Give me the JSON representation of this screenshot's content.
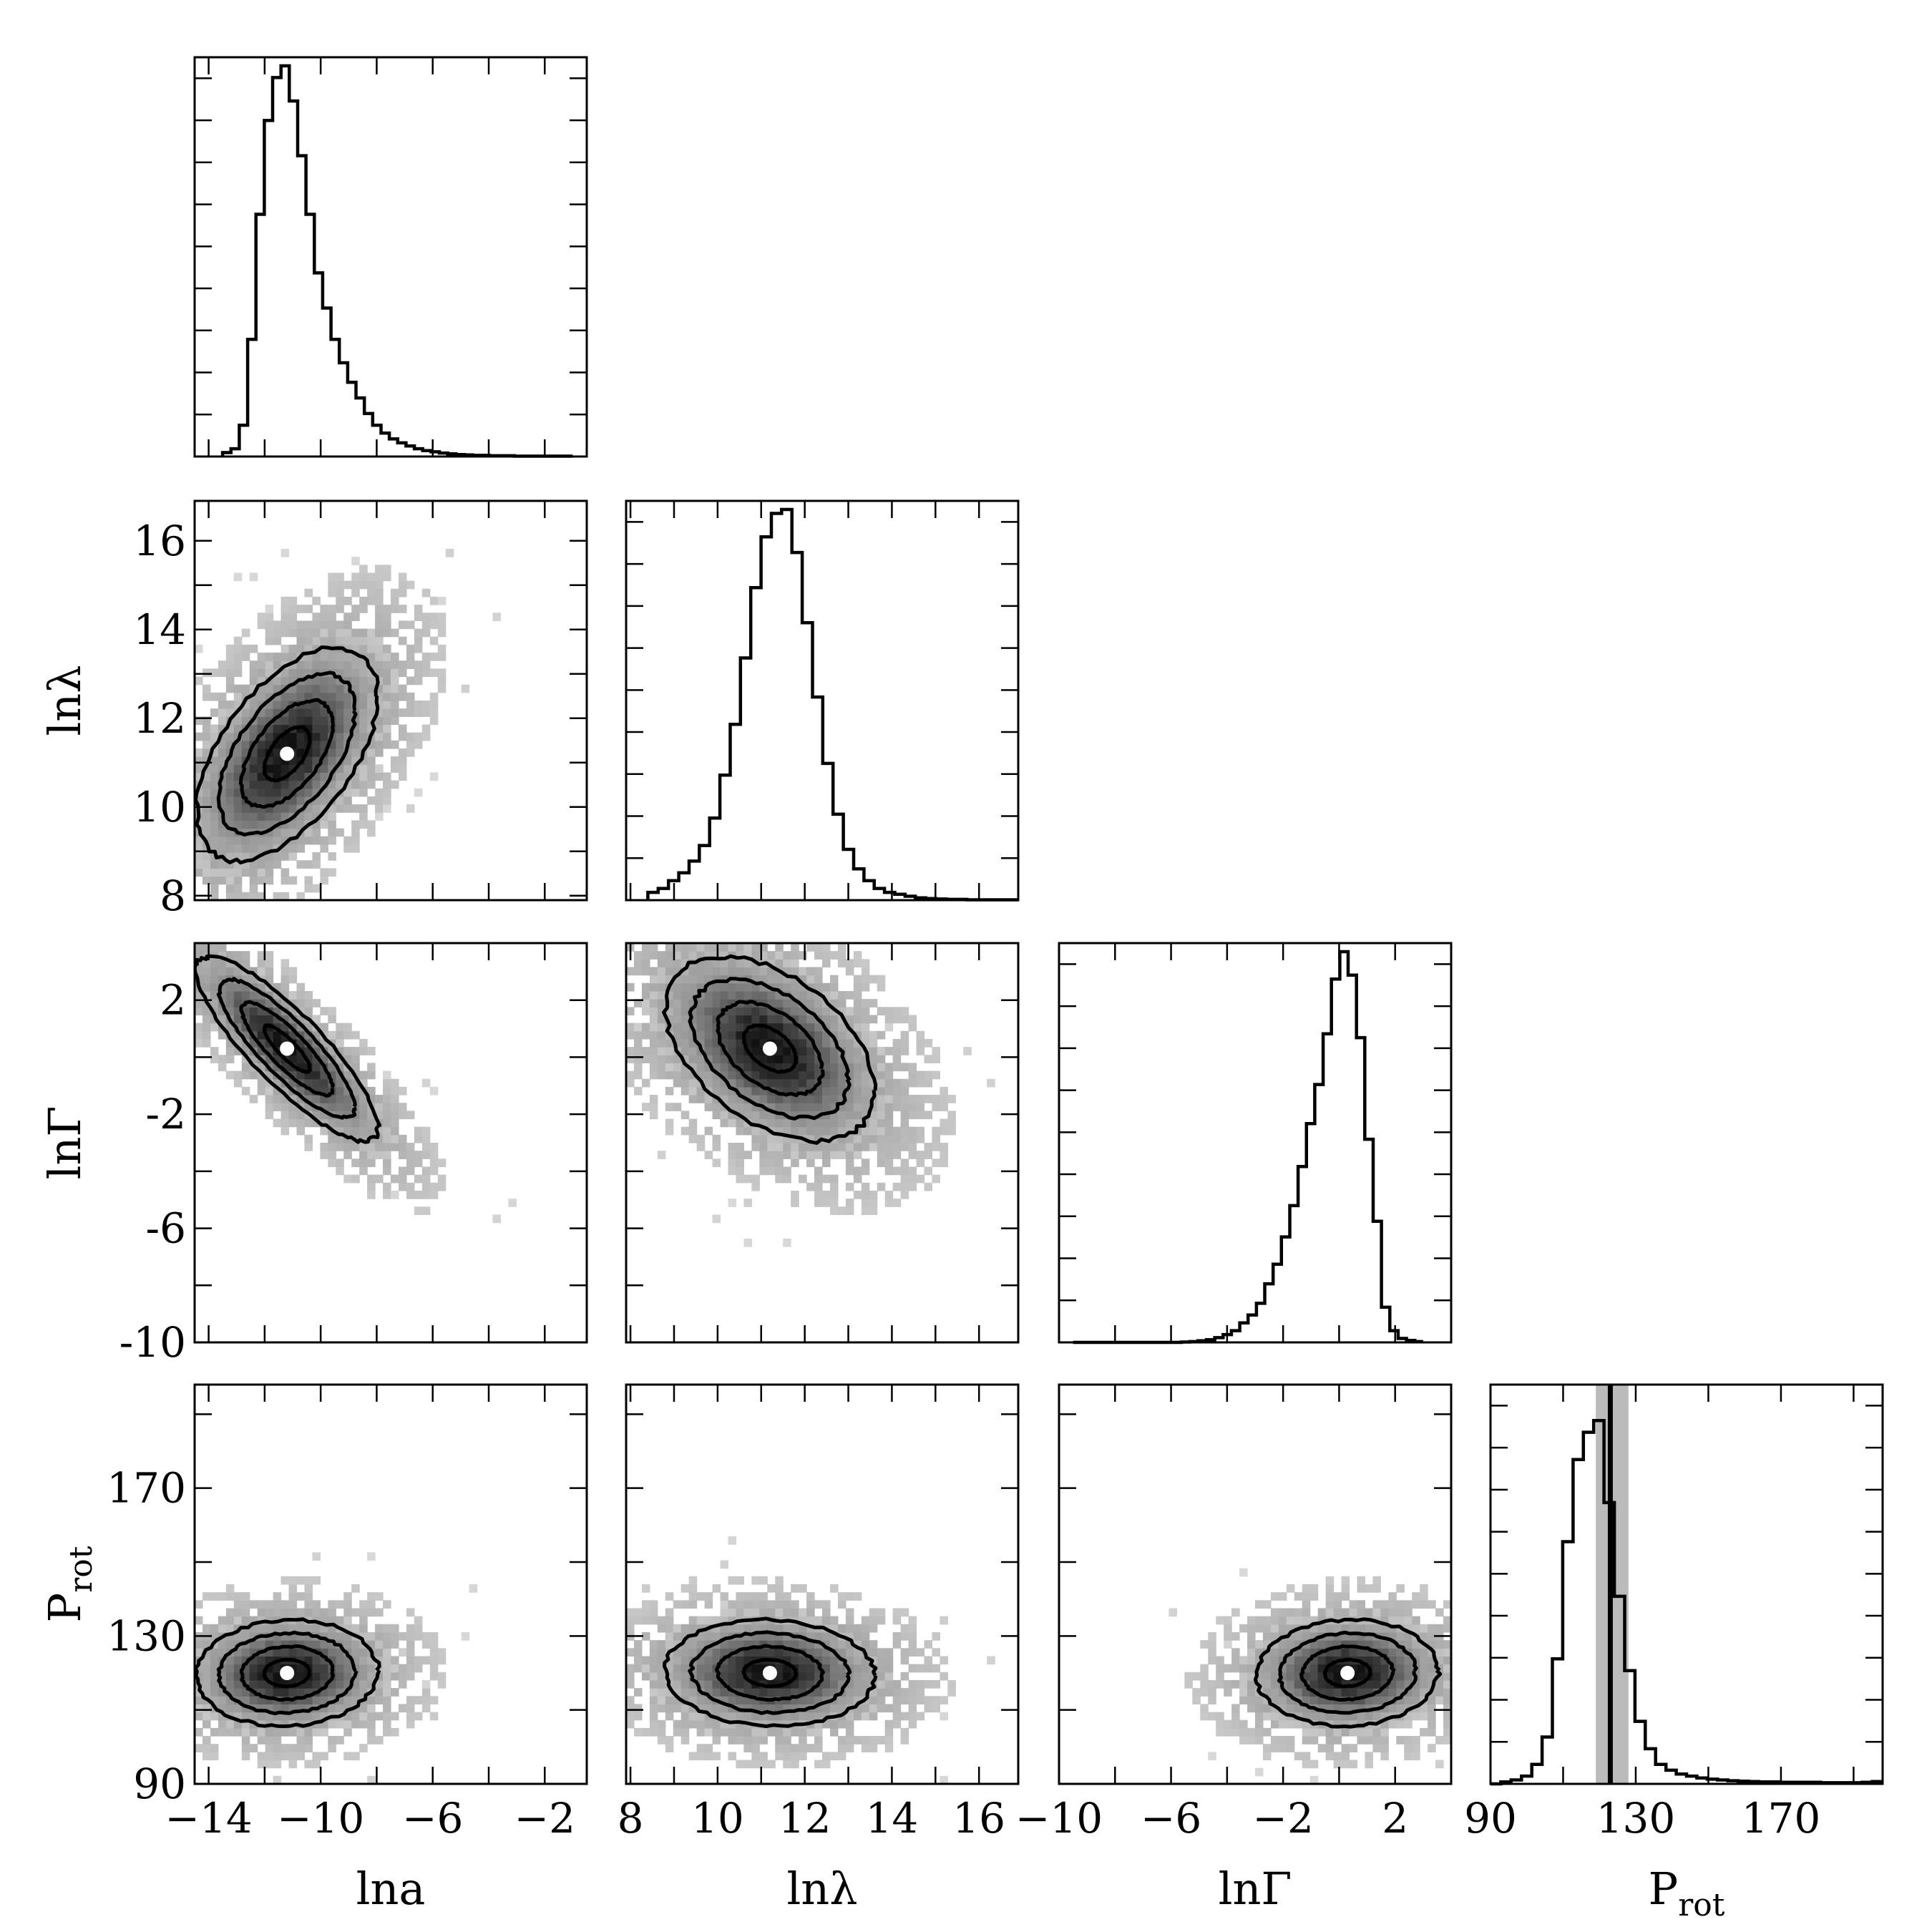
{
  "chart_data": {
    "type": "corner",
    "parameters": [
      {
        "key": "lna",
        "label": "lna",
        "label_sub": "",
        "range": [
          -14.5,
          -0.5
        ],
        "ticks": [
          -14,
          -10,
          -6,
          -2
        ],
        "tick_labels": [
          "−14",
          "−10",
          "−6",
          "−2"
        ]
      },
      {
        "key": "lnlambda",
        "label": "lnλ",
        "label_sub": "",
        "range": [
          7.9,
          16.9
        ],
        "ticks": [
          8,
          10,
          12,
          14,
          16
        ],
        "tick_labels": [
          "8",
          "10",
          "12",
          "14",
          "16"
        ]
      },
      {
        "key": "lnGamma",
        "label": "lnΓ",
        "label_sub": "",
        "range": [
          -10,
          4
        ],
        "ticks": [
          -10,
          -6,
          -2,
          2
        ],
        "tick_labels": [
          "−10",
          "−6",
          "−2",
          "2"
        ],
        "y_tick_labels": [
          "-10",
          "-6",
          "-2",
          "2"
        ]
      },
      {
        "key": "Prot",
        "label": "P",
        "label_sub": "rot",
        "range": [
          90,
          198
        ],
        "ticks": [
          90,
          130,
          170
        ],
        "tick_labels": [
          "90",
          "130",
          "170"
        ]
      }
    ],
    "histograms": [
      {
        "parameter": "lna",
        "bin_edges_range": [
          -13.5,
          -1.0
        ],
        "counts": [
          0.01,
          0.02,
          0.08,
          0.3,
          0.62,
          0.86,
          0.97,
          1.0,
          0.91,
          0.77,
          0.62,
          0.47,
          0.38,
          0.3,
          0.24,
          0.19,
          0.15,
          0.11,
          0.08,
          0.06,
          0.045,
          0.035,
          0.027,
          0.02,
          0.015,
          0.012,
          0.009,
          0.007,
          0.005,
          0.004,
          0.003,
          0.003,
          0.002,
          0.002,
          0.002,
          0.001,
          0.001,
          0.001,
          0.001,
          0.001,
          0.001,
          0.001
        ]
      },
      {
        "parameter": "lnlambda",
        "bin_edges_range": [
          8.4,
          16.9
        ],
        "counts": [
          0.02,
          0.03,
          0.05,
          0.07,
          0.1,
          0.14,
          0.21,
          0.32,
          0.45,
          0.62,
          0.8,
          0.93,
          0.99,
          1.0,
          0.89,
          0.71,
          0.52,
          0.35,
          0.22,
          0.13,
          0.08,
          0.05,
          0.03,
          0.02,
          0.015,
          0.01,
          0.006,
          0.004,
          0.003,
          0.002,
          0.002,
          0.001,
          0.001,
          0.001,
          0.001,
          0.001
        ]
      },
      {
        "parameter": "lnGamma",
        "bin_edges_range": [
          -9.5,
          3.0
        ],
        "counts": [
          0.0,
          0.0,
          0.0,
          0.0,
          0.0,
          0.0,
          0.0,
          0.0,
          0.0,
          0.0,
          0.0,
          0.0,
          0.0,
          0.001,
          0.002,
          0.004,
          0.007,
          0.012,
          0.02,
          0.03,
          0.05,
          0.07,
          0.1,
          0.15,
          0.2,
          0.27,
          0.35,
          0.45,
          0.56,
          0.66,
          0.79,
          0.93,
          1.0,
          0.94,
          0.78,
          0.52,
          0.31,
          0.09,
          0.03,
          0.01,
          0.005,
          0.002
        ]
      },
      {
        "parameter": "Prot",
        "bin_edges_range": [
          90,
          198
        ],
        "counts": [
          0.0,
          0.005,
          0.01,
          0.02,
          0.05,
          0.12,
          0.32,
          0.62,
          0.83,
          0.9,
          0.93,
          0.72,
          0.48,
          0.29,
          0.16,
          0.09,
          0.05,
          0.035,
          0.025,
          0.02,
          0.015,
          0.012,
          0.01,
          0.008,
          0.007,
          0.006,
          0.005,
          0.005,
          0.004,
          0.004,
          0.004,
          0.004,
          0.003,
          0.003,
          0.003,
          0.003,
          0.004,
          0.006
        ]
      }
    ],
    "densities": [
      {
        "row": 1,
        "col": 0,
        "x": "lna",
        "y": "lnlambda",
        "center": [
          -11.2,
          11.2
        ],
        "sigma_x": 1.35,
        "sigma_y": 1.0,
        "rho": 0.55,
        "contour_levels_sigma": [
          0.5,
          1.0,
          1.5,
          2.0
        ]
      },
      {
        "row": 2,
        "col": 0,
        "x": "lna",
        "y": "lnGamma",
        "center": [
          -11.2,
          0.3
        ],
        "sigma_x": 1.35,
        "sigma_y": 1.35,
        "rho": -0.85,
        "contour_levels_sigma": [
          0.5,
          1.0,
          1.5,
          2.0
        ]
      },
      {
        "row": 2,
        "col": 1,
        "x": "lnlambda",
        "y": "lnGamma",
        "center": [
          11.2,
          0.3
        ],
        "sigma_x": 1.0,
        "sigma_y": 1.35,
        "rho": -0.45,
        "contour_levels_sigma": [
          0.5,
          1.0,
          1.5,
          2.0
        ]
      },
      {
        "row": 3,
        "col": 0,
        "x": "lna",
        "y": "Prot",
        "center": [
          -11.2,
          120
        ],
        "sigma_x": 1.35,
        "sigma_y": 6.0,
        "rho": 0.05,
        "contour_levels_sigma": [
          0.5,
          1.0,
          1.5,
          2.0
        ]
      },
      {
        "row": 3,
        "col": 1,
        "x": "lnlambda",
        "y": "Prot",
        "center": [
          11.2,
          120
        ],
        "sigma_x": 1.0,
        "sigma_y": 6.0,
        "rho": -0.05,
        "contour_levels_sigma": [
          0.5,
          1.0,
          1.5,
          2.0
        ]
      },
      {
        "row": 3,
        "col": 2,
        "x": "lnGamma",
        "y": "Prot",
        "center": [
          0.3,
          120
        ],
        "sigma_x": 1.35,
        "sigma_y": 6.0,
        "rho": 0.05,
        "contour_levels_sigma": [
          0.5,
          1.0,
          1.5,
          2.0
        ]
      }
    ],
    "truth_markers": [
      {
        "parameter": "Prot",
        "value": 123,
        "band": [
          119,
          128
        ]
      }
    ],
    "colors": {
      "frame": "#000000",
      "density_dark": "#111111",
      "density_light": "#d8d8d8",
      "max_point": "#ffffff",
      "band": "#bbbbbb"
    }
  }
}
